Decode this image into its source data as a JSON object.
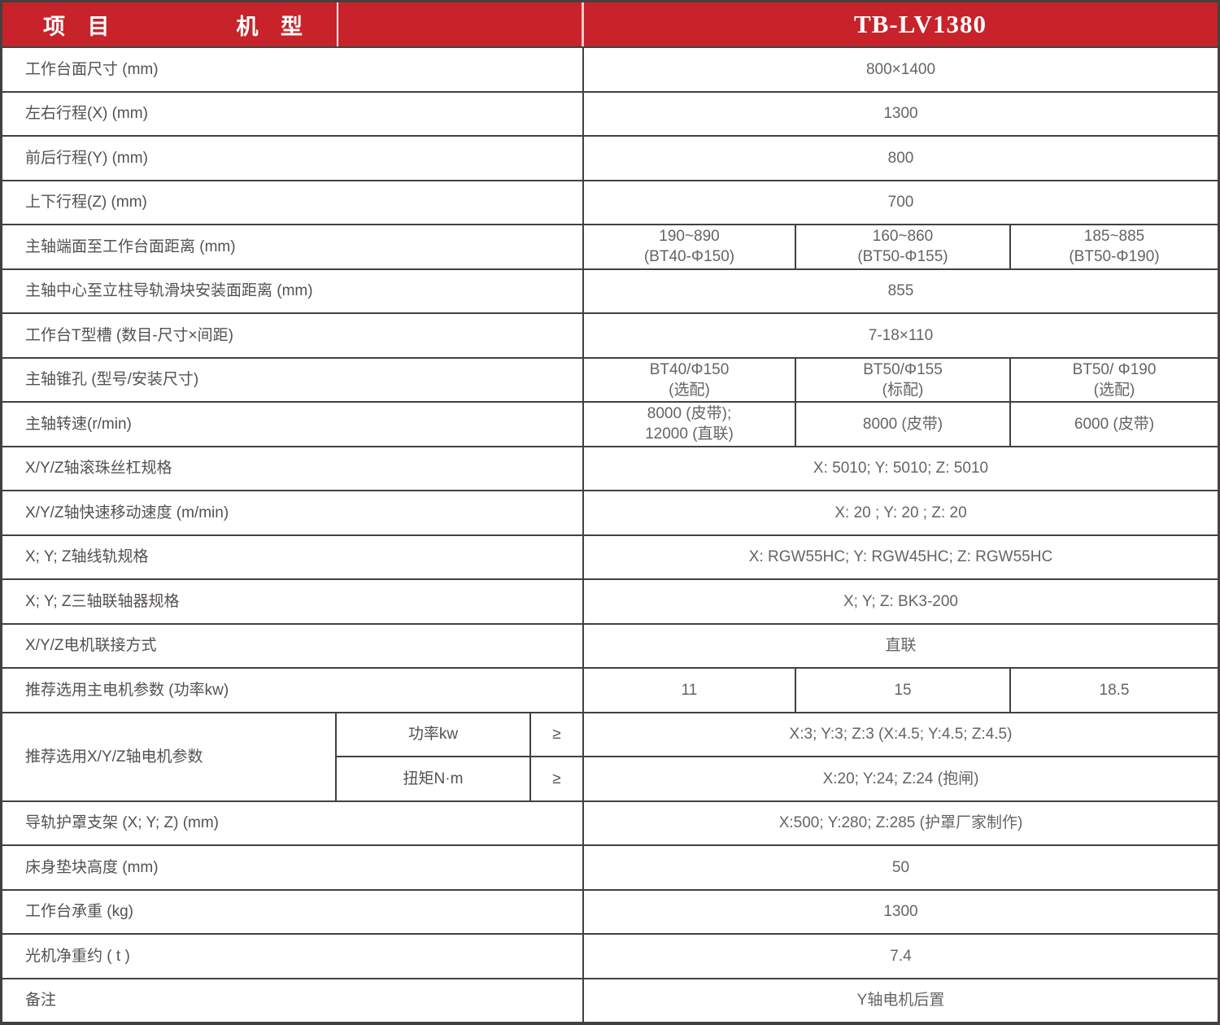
{
  "header": {
    "item_label": "项 目",
    "model_label": "机 型",
    "model_value": "TB-LV1380"
  },
  "colors": {
    "header_red": "#C8232A",
    "border": "#444041",
    "label_text": "#54514F",
    "value_text": "#666463",
    "header_divider_white": "#FFFFFF",
    "header_divider_pink": "#F2CFCF"
  },
  "rows": [
    {
      "label": "工作台面尺寸 (mm)",
      "cells": [
        {
          "lines": [
            "800×1400"
          ]
        }
      ]
    },
    {
      "label": "左右行程(X) (mm)",
      "cells": [
        {
          "lines": [
            "1300"
          ]
        }
      ]
    },
    {
      "label": "前后行程(Y) (mm)",
      "cells": [
        {
          "lines": [
            "800"
          ]
        }
      ]
    },
    {
      "label": "上下行程(Z) (mm)",
      "cells": [
        {
          "lines": [
            "700"
          ]
        }
      ]
    },
    {
      "label": "主轴端面至工作台面距离 (mm)",
      "cells": [
        {
          "lines": [
            "190~890",
            "(BT40-Φ150)"
          ]
        },
        {
          "lines": [
            "160~860",
            "(BT50-Φ155)"
          ]
        },
        {
          "lines": [
            "185~885",
            "(BT50-Φ190)"
          ]
        }
      ]
    },
    {
      "label": "主轴中心至立柱导轨滑块安装面距离 (mm)",
      "cells": [
        {
          "lines": [
            "855"
          ]
        }
      ]
    },
    {
      "label": "工作台T型槽 (数目-尺寸×间距)",
      "cells": [
        {
          "lines": [
            "7-18×110"
          ]
        }
      ]
    },
    {
      "label": "主轴锥孔 (型号/安装尺寸)",
      "cells": [
        {
          "lines": [
            "BT40/Φ150",
            "(选配)"
          ]
        },
        {
          "lines": [
            "BT50/Φ155",
            "(标配)"
          ]
        },
        {
          "lines": [
            "BT50/ Φ190",
            "(选配)"
          ]
        }
      ]
    },
    {
      "label": "主轴转速(r/min)",
      "cells": [
        {
          "lines": [
            "8000 (皮带);",
            "12000 (直联)"
          ]
        },
        {
          "lines": [
            "8000 (皮带)"
          ]
        },
        {
          "lines": [
            "6000 (皮带)"
          ]
        }
      ]
    },
    {
      "label": "X/Y/Z轴滚珠丝杠规格",
      "cells": [
        {
          "lines": [
            "X: 5010; Y: 5010; Z: 5010"
          ]
        }
      ]
    },
    {
      "label": "X/Y/Z轴快速移动速度 (m/min)",
      "cells": [
        {
          "lines": [
            "X: 20 ; Y: 20 ; Z: 20"
          ]
        }
      ]
    },
    {
      "label": "X; Y; Z轴线轨规格",
      "cells": [
        {
          "lines": [
            "X: RGW55HC; Y: RGW45HC; Z: RGW55HC"
          ]
        }
      ]
    },
    {
      "label": "X; Y; Z三轴联轴器规格",
      "cells": [
        {
          "lines": [
            "X; Y; Z: BK3-200"
          ]
        }
      ]
    },
    {
      "label": "X/Y/Z电机联接方式",
      "cells": [
        {
          "lines": [
            "直联"
          ]
        }
      ]
    },
    {
      "label": "推荐选用主电机参数 (功率kw)",
      "cells": [
        {
          "lines": [
            "11"
          ]
        },
        {
          "lines": [
            "15"
          ]
        },
        {
          "lines": [
            "18.5"
          ]
        }
      ]
    },
    {
      "label": "推荐选用X/Y/Z轴电机参数",
      "subrows": [
        {
          "param": "功率kw",
          "operator": "≥",
          "value": "X:3; Y:3; Z:3 (X:4.5; Y:4.5; Z:4.5)"
        },
        {
          "param": "扭矩N·m",
          "operator": "≥",
          "value": "X:20; Y:24; Z:24 (抱闸)"
        }
      ]
    },
    {
      "label": "导轨护罩支架 (X; Y; Z) (mm)",
      "cells": [
        {
          "lines": [
            "X:500; Y:280; Z:285 (护罩厂家制作)"
          ]
        }
      ]
    },
    {
      "label": "床身垫块高度 (mm)",
      "cells": [
        {
          "lines": [
            "50"
          ]
        }
      ]
    },
    {
      "label": "工作台承重 (kg)",
      "cells": [
        {
          "lines": [
            "1300"
          ]
        }
      ]
    },
    {
      "label": "光机净重约 ( t )",
      "cells": [
        {
          "lines": [
            "7.4"
          ]
        }
      ]
    },
    {
      "label": "备注",
      "cells": [
        {
          "lines": [
            "Y轴电机后置"
          ]
        }
      ]
    }
  ]
}
